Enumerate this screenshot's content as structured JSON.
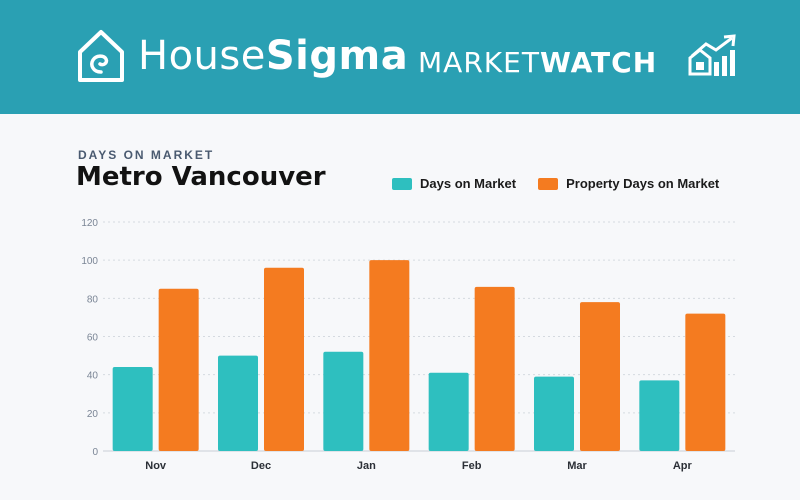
{
  "header": {
    "brand_light": "House",
    "brand_bold": "Sigma",
    "section_light": "MARKET",
    "section_bold": "WATCH",
    "brand_icon": "house-logo-icon",
    "section_icon": "house-growth-arrow-icon",
    "background_color": "#2aa0b3"
  },
  "chart_data": {
    "type": "bar",
    "kicker": "DAYS ON MARKET",
    "title": "Metro Vancouver",
    "categories": [
      "Nov",
      "Dec",
      "Jan",
      "Feb",
      "Mar",
      "Apr"
    ],
    "series": [
      {
        "name": "Days on Market",
        "color": "#2ebfbf",
        "values": [
          44,
          50,
          52,
          41,
          39,
          37
        ]
      },
      {
        "name": "Property Days on Market",
        "color": "#f47b20",
        "values": [
          85,
          96,
          100,
          86,
          78,
          72
        ]
      }
    ],
    "yticks": [
      0,
      20,
      40,
      60,
      80,
      100,
      120
    ],
    "ylim": [
      0,
      120
    ],
    "grid": true,
    "legend_position": "top-right"
  }
}
